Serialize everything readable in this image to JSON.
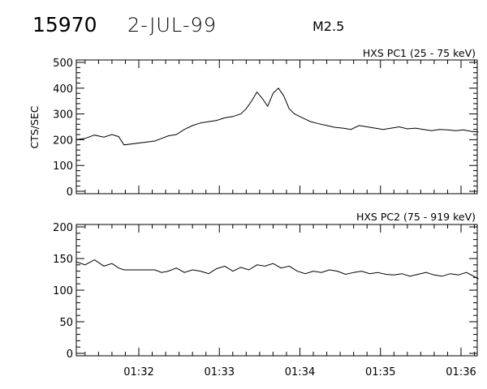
{
  "header": {
    "event_id": "15970",
    "date": "2-JUL-99",
    "flare_class": "M2.5"
  },
  "chart_data": [
    {
      "type": "line",
      "title": "HXS PC1 (25 - 75 keV)",
      "ylabel": "CTS/SEC",
      "xlabel": "",
      "ylim": [
        0,
        500
      ],
      "y_ticks": [
        0,
        100,
        200,
        300,
        400,
        500
      ],
      "x_ticks": [
        "01:32",
        "01:33",
        "01:34",
        "01:35",
        "01:36"
      ],
      "show_x_tick_labels": false,
      "grid": false,
      "series": [
        {
          "x": [
            "01:31:13",
            "01:31:20",
            "01:31:27",
            "01:31:34",
            "01:31:40",
            "01:31:45",
            "01:31:49",
            "01:32:12",
            "01:32:17",
            "01:32:22",
            "01:32:28",
            "01:32:34",
            "01:32:40",
            "01:32:46",
            "01:32:52",
            "01:32:58",
            "01:33:04",
            "01:33:10",
            "01:33:16",
            "01:33:20",
            "01:33:24",
            "01:33:28",
            "01:33:32",
            "01:33:36",
            "01:33:40",
            "01:33:44",
            "01:33:48",
            "01:33:52",
            "01:33:56",
            "01:34:02",
            "01:34:08",
            "01:34:14",
            "01:34:20",
            "01:34:26",
            "01:34:32",
            "01:34:38",
            "01:34:44",
            "01:34:50",
            "01:34:56",
            "01:35:02",
            "01:35:08",
            "01:35:14",
            "01:35:20",
            "01:35:26",
            "01:35:32",
            "01:35:38",
            "01:35:44",
            "01:35:50",
            "01:35:56",
            "01:36:02",
            "01:36:08",
            "01:36:13"
          ],
          "values": [
            200,
            205,
            218,
            210,
            220,
            212,
            180,
            195,
            205,
            215,
            220,
            240,
            255,
            265,
            270,
            275,
            285,
            290,
            300,
            320,
            350,
            385,
            360,
            330,
            380,
            400,
            370,
            320,
            300,
            285,
            270,
            262,
            255,
            248,
            245,
            240,
            255,
            250,
            245,
            240,
            245,
            250,
            242,
            245,
            240,
            235,
            240,
            238,
            235,
            238,
            232,
            230
          ]
        }
      ]
    },
    {
      "type": "line",
      "title": "HXS PC2 (75 - 919 keV)",
      "ylabel": "",
      "xlabel": "",
      "ylim": [
        0,
        200
      ],
      "y_ticks": [
        0,
        50,
        100,
        150,
        200
      ],
      "x_ticks": [
        "01:32",
        "01:33",
        "01:34",
        "01:35",
        "01:36"
      ],
      "show_x_tick_labels": true,
      "grid": false,
      "series": [
        {
          "x": [
            "01:31:13",
            "01:31:20",
            "01:31:27",
            "01:31:34",
            "01:31:40",
            "01:31:45",
            "01:31:49",
            "01:32:12",
            "01:32:17",
            "01:32:22",
            "01:32:28",
            "01:32:34",
            "01:32:40",
            "01:32:46",
            "01:32:52",
            "01:32:58",
            "01:33:04",
            "01:33:10",
            "01:33:16",
            "01:33:22",
            "01:33:28",
            "01:33:34",
            "01:33:40",
            "01:33:46",
            "01:33:52",
            "01:33:58",
            "01:34:04",
            "01:34:10",
            "01:34:16",
            "01:34:22",
            "01:34:28",
            "01:34:34",
            "01:34:40",
            "01:34:46",
            "01:34:52",
            "01:34:58",
            "01:35:04",
            "01:35:10",
            "01:35:16",
            "01:35:22",
            "01:35:28",
            "01:35:34",
            "01:35:40",
            "01:35:46",
            "01:35:52",
            "01:35:58",
            "01:36:04",
            "01:36:13"
          ],
          "values": [
            145,
            140,
            148,
            138,
            142,
            135,
            132,
            132,
            128,
            130,
            135,
            128,
            132,
            130,
            126,
            134,
            138,
            130,
            136,
            132,
            140,
            138,
            142,
            135,
            138,
            130,
            126,
            130,
            128,
            132,
            130,
            125,
            128,
            130,
            126,
            128,
            125,
            124,
            126,
            122,
            125,
            128,
            124,
            122,
            126,
            124,
            128,
            118
          ]
        }
      ]
    }
  ]
}
